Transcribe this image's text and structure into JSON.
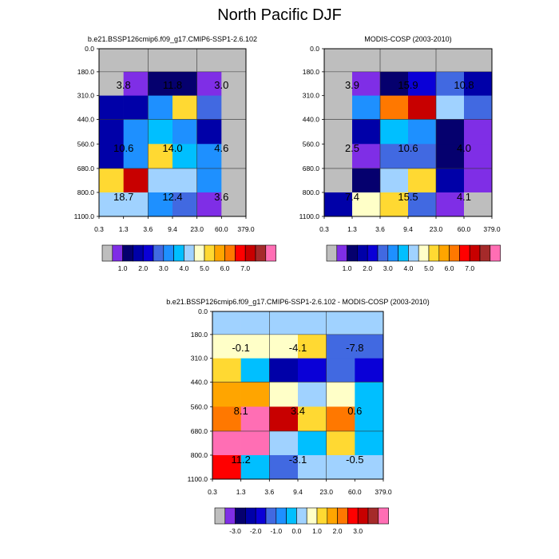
{
  "figure_title": "North Pacific DJF",
  "palette": {
    "missing": "#bebebe",
    "colors": [
      "#7f2ee6",
      "#05006e",
      "#0000a8",
      "#0a00d7",
      "#4169e1",
      "#1e90ff",
      "#00bfff",
      "#a0d2ff",
      "#ffffc8",
      "#ffd932",
      "#ffa500",
      "#ff7800",
      "#ff0000",
      "#c80000",
      "#a52a2a",
      "#ff6eb4"
    ]
  },
  "chart_data": [
    {
      "type": "heatmap",
      "title": "b.e21.BSSP126cmip6.f09_g17.CMIP6-SSP1-2.6.102",
      "x_ticks": [
        "0.3",
        "1.3",
        "3.6",
        "9.4",
        "23.0",
        "60.0",
        "379.0"
      ],
      "y_ticks": [
        "0.0",
        "180.0",
        "310.0",
        "440.0",
        "560.0",
        "680.0",
        "800.0",
        "1100.0"
      ],
      "grid_colors": [
        [
          0,
          0,
          0,
          0,
          0,
          0
        ],
        [
          0,
          1,
          2,
          2,
          1,
          0
        ],
        [
          3,
          3,
          6,
          10,
          5,
          0
        ],
        [
          3,
          6,
          7,
          6,
          3,
          0
        ],
        [
          3,
          6,
          10,
          7,
          6,
          0
        ],
        [
          10,
          14,
          8,
          8,
          6,
          0
        ],
        [
          8,
          8,
          6,
          5,
          1,
          0
        ]
      ],
      "box_labels": [
        [
          "3.8",
          "11.8",
          "3.0"
        ],
        [
          "10.6",
          "14.0",
          "4.6"
        ],
        [
          "18.7",
          "12.4",
          "3.6"
        ]
      ],
      "colorbar_labels": [
        "1.0",
        "2.0",
        "3.0",
        "4.0",
        "5.0",
        "6.0",
        "7.0"
      ]
    },
    {
      "type": "heatmap",
      "title": "MODIS-COSP (2003-2010)",
      "x_ticks": [
        "0.3",
        "1.3",
        "3.6",
        "9.4",
        "23.0",
        "60.0",
        "379.0"
      ],
      "y_ticks": [
        "0.0",
        "180.0",
        "310.0",
        "440.0",
        "560.0",
        "680.0",
        "800.0",
        "1100.0"
      ],
      "grid_colors": [
        [
          0,
          0,
          0,
          0,
          0,
          0
        ],
        [
          0,
          1,
          2,
          4,
          5,
          3
        ],
        [
          0,
          6,
          12,
          14,
          8,
          5
        ],
        [
          0,
          3,
          7,
          6,
          2,
          1
        ],
        [
          0,
          1,
          5,
          5,
          2,
          1
        ],
        [
          0,
          2,
          8,
          10,
          3,
          1
        ],
        [
          3,
          9,
          10,
          5,
          1,
          0
        ]
      ],
      "box_labels": [
        [
          "3.9",
          "15.9",
          "10.8"
        ],
        [
          "2.5",
          "10.6",
          "4.0"
        ],
        [
          "7.4",
          "15.5",
          "4.1"
        ]
      ],
      "colorbar_labels": [
        "1.0",
        "2.0",
        "3.0",
        "4.0",
        "5.0",
        "6.0",
        "7.0"
      ]
    },
    {
      "type": "heatmap",
      "title": "b.e21.BSSP126cmip6.f09_g17.CMIP6-SSP1-2.6.102 - MODIS-COSP (2003-2010)",
      "x_ticks": [
        "0.3",
        "1.3",
        "3.6",
        "9.4",
        "23.0",
        "60.0",
        "379.0"
      ],
      "y_ticks": [
        "0.0",
        "180.0",
        "310.0",
        "440.0",
        "560.0",
        "680.0",
        "800.0",
        "1100.0"
      ],
      "grid_colors": [
        [
          8,
          8,
          8,
          8,
          8,
          8
        ],
        [
          9,
          9,
          9,
          10,
          5,
          5
        ],
        [
          10,
          7,
          3,
          4,
          5,
          4
        ],
        [
          11,
          11,
          9,
          8,
          9,
          7
        ],
        [
          12,
          16,
          14,
          10,
          12,
          7
        ],
        [
          16,
          16,
          8,
          7,
          10,
          7
        ],
        [
          13,
          7,
          5,
          8,
          8,
          8
        ]
      ],
      "box_labels": [
        [
          "-0.1",
          "-4.1",
          "-7.8"
        ],
        [
          "8.1",
          "3.4",
          "0.6"
        ],
        [
          "11.2",
          "-3.1",
          "-0.5"
        ]
      ],
      "colorbar_labels": [
        "-3.0",
        "-2.0",
        "-1.0",
        "0.0",
        "1.0",
        "2.0",
        "3.0"
      ]
    }
  ]
}
